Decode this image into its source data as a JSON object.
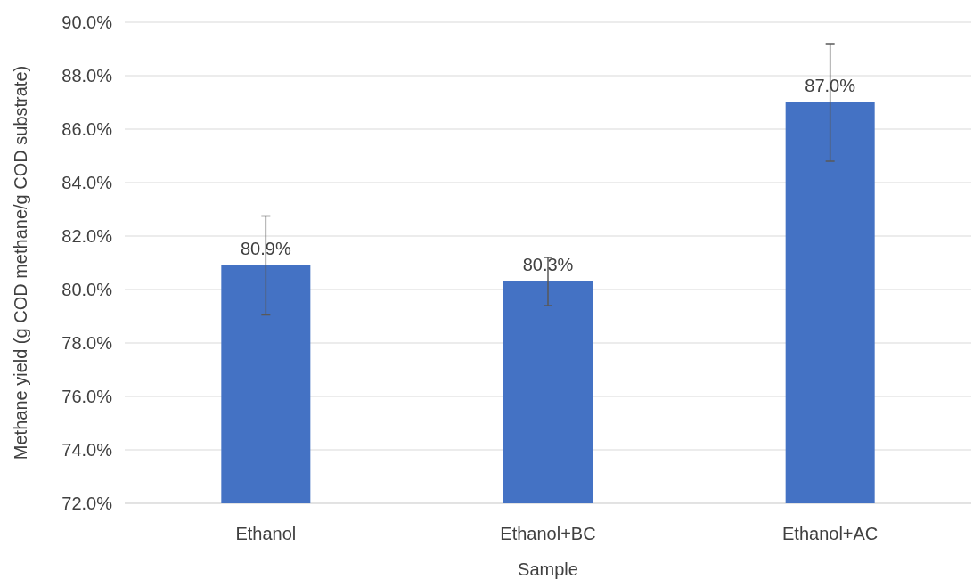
{
  "chart_data": {
    "type": "bar",
    "xlabel": "Sample",
    "ylabel": "Methane yield (g COD methane/g COD substrate)",
    "categories": [
      "Ethanol",
      "Ethanol+BC",
      "Ethanol+AC"
    ],
    "values": [
      80.9,
      80.3,
      87.0
    ],
    "errors": [
      1.85,
      0.9,
      2.2
    ],
    "value_labels": [
      "80.9%",
      "80.3%",
      "87.0%"
    ],
    "color": "#4472c4",
    "ylim": [
      72,
      90
    ],
    "yticks": [
      {
        "value": 72,
        "label": "72.0%"
      },
      {
        "value": 74,
        "label": "74.0%"
      },
      {
        "value": 76,
        "label": "76.0%"
      },
      {
        "value": 78,
        "label": "78.0%"
      },
      {
        "value": 80,
        "label": "80.0%"
      },
      {
        "value": 82,
        "label": "82.0%"
      },
      {
        "value": 84,
        "label": "84.0%"
      },
      {
        "value": 86,
        "label": "86.0%"
      },
      {
        "value": 88,
        "label": "88.0%"
      },
      {
        "value": 90,
        "label": "90.0%"
      }
    ],
    "grid": "y"
  }
}
